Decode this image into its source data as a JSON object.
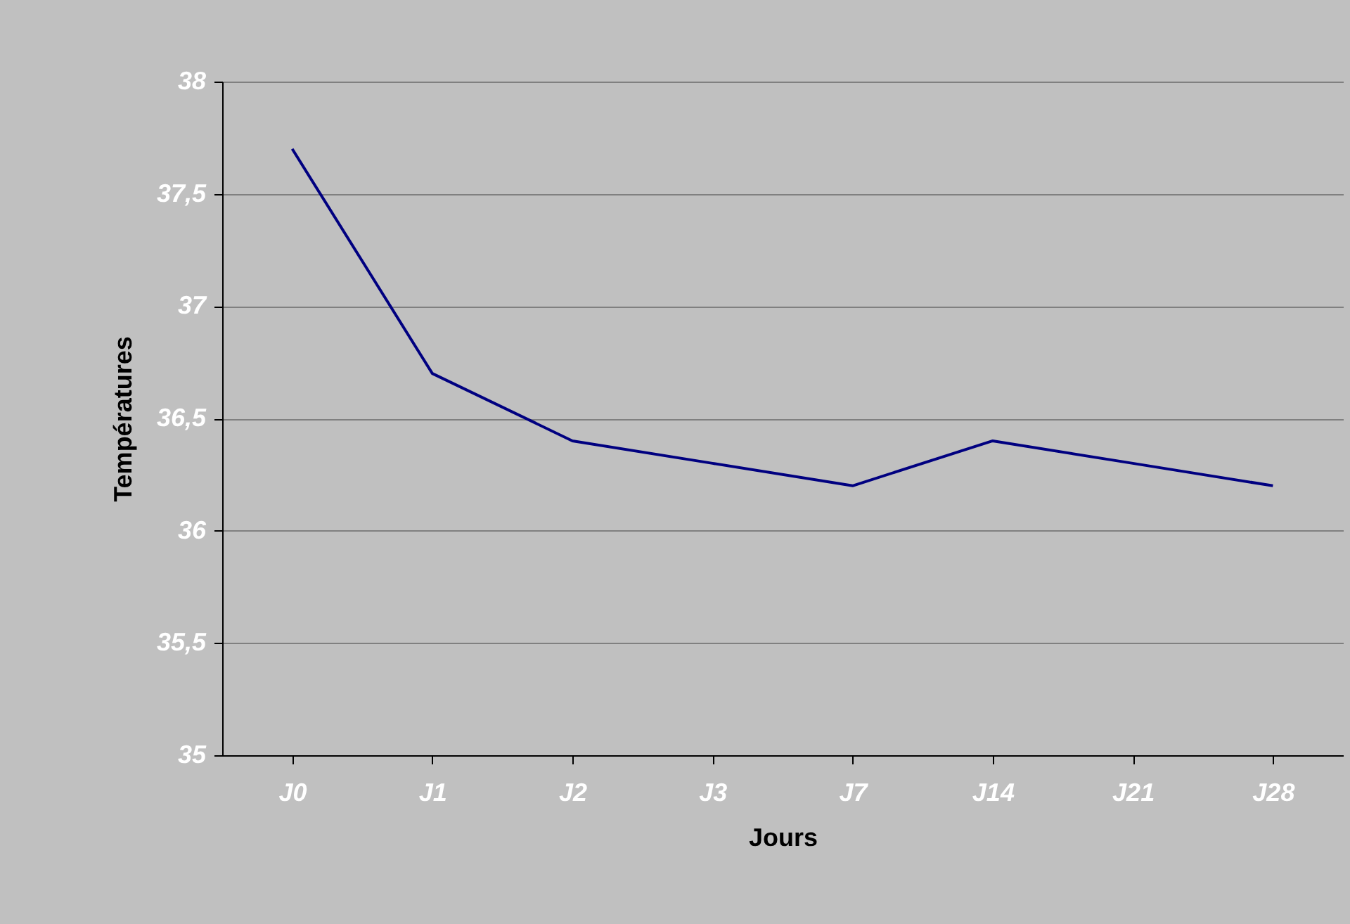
{
  "chart_data": {
    "type": "line",
    "xlabel": "Jours",
    "ylabel": "Températures",
    "categories": [
      "J0",
      "J1",
      "J2",
      "J3",
      "J7",
      "J14",
      "J21",
      "J28"
    ],
    "series": [
      {
        "color": "#000080",
        "values": [
          37.7,
          36.7,
          36.4,
          36.3,
          36.2,
          36.4,
          36.3,
          36.2
        ]
      }
    ],
    "ylim": [
      35,
      38
    ],
    "yticks": [
      35,
      {
        "value": 35.5,
        "label": "35,5"
      },
      36,
      {
        "value": 36.5,
        "label": "36,5"
      },
      37,
      {
        "value": 37.5,
        "label": "37,5"
      },
      38
    ],
    "grid": "y"
  }
}
